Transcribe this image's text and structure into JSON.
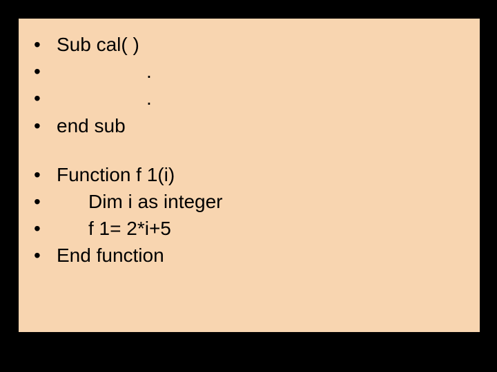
{
  "slide": {
    "background_color": "#f8d5b0",
    "outer_background": "#000000",
    "font_family": "Arial",
    "font_size_pt": 21,
    "text_color": "#000000",
    "bullet_char": "•",
    "lines_block1": [
      {
        "text": "Sub cal(  )",
        "indent": "none"
      },
      {
        "text": ".",
        "indent": "dot"
      },
      {
        "text": ".",
        "indent": "dot"
      },
      {
        "text": "end sub",
        "indent": "none"
      }
    ],
    "lines_block2": [
      {
        "text": "Function f 1(i)",
        "indent": "none"
      },
      {
        "text": "Dim i as integer",
        "indent": "indent1"
      },
      {
        "text": "f 1= 2*i+5",
        "indent": "indent1"
      },
      {
        "text": "End function",
        "indent": "none"
      }
    ]
  }
}
